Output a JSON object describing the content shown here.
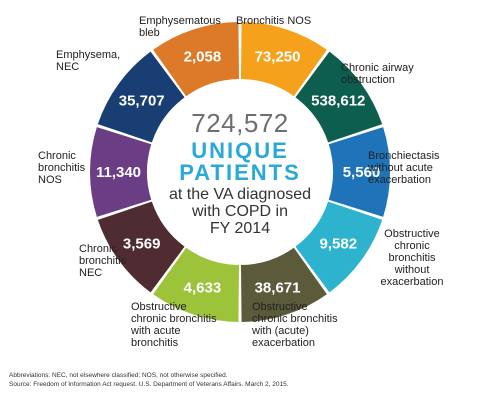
{
  "chart_data": {
    "type": "pie",
    "total": "724,572",
    "center_lines": [
      "UNIQUE",
      "PATIENTS",
      "at the VA diagnosed",
      "with COPD in",
      "FY 2014"
    ],
    "slices": [
      {
        "label": "Bronchitis NOS",
        "value": 73250,
        "value_label": "73,250",
        "color": "#f5a11c"
      },
      {
        "label": "Chronic airway obstruction",
        "value": 538612,
        "value_label": "538,612",
        "color": "#0d5e4e"
      },
      {
        "label": "Bronchiectasis without acute exacerbation",
        "value": 5560,
        "value_label": "5,560",
        "color": "#1f74b9"
      },
      {
        "label": "Obstructive chronic bronchitis without exacerbation",
        "value": 9582,
        "value_label": "9,582",
        "color": "#2eb3cf"
      },
      {
        "label": "Obstructive chronic bronchitis with (acute) exacerbation",
        "value": 38671,
        "value_label": "38,671",
        "color": "#5b5b3c"
      },
      {
        "label": "Obstructive chronic bronchitis with acute bronchitis",
        "value": 4633,
        "value_label": "4,633",
        "color": "#9dc33b"
      },
      {
        "label": "Chronic bronchitis NEC",
        "value": 3569,
        "value_label": "3,569",
        "color": "#4e2c32"
      },
      {
        "label": "Chronic bronchitis NOS",
        "value": 11340,
        "value_label": "11,340",
        "color": "#6a3d84"
      },
      {
        "label": "Emphysema, NEC",
        "value": 35707,
        "value_label": "35,707",
        "color": "#183e73"
      },
      {
        "label": "Emphysematous bleb",
        "value": 2058,
        "value_label": "2,058",
        "color": "#dd7a27"
      }
    ]
  },
  "labels": {
    "bronchitis_nos": [
      "Bronchitis NOS"
    ],
    "chronic_airway": [
      "Chronic airway",
      "obstruction"
    ],
    "bronchiectasis": [
      "Bronchiectasis",
      "without acute",
      "exacerbation"
    ],
    "obc_without": [
      "Obstructive",
      "chronic",
      "bronchitis",
      "without",
      "exacerbation"
    ],
    "obc_with_exac": [
      "Obstructive",
      "chronic bronchitis",
      "with (acute)",
      "exacerbation"
    ],
    "obc_acute": [
      "Obstructive",
      "chronic bronchitis",
      "with acute",
      "bronchitis"
    ],
    "cb_nec": [
      "Chronic",
      "bronchitis",
      "NEC"
    ],
    "cb_nos": [
      "Chronic",
      "bronchitis",
      "NOS"
    ],
    "emphysema": [
      "Emphysema,",
      "NEC"
    ],
    "bleb": [
      "Emphysematous",
      "bleb"
    ]
  },
  "footnote": {
    "abbrev": "Abbreviations: NEC, not elsewhere classified; NOS, not otherwise specified.",
    "source": "Source: Freedom of Information Act request. U.S. Department of Veterans Affairs. March 2, 2015."
  }
}
